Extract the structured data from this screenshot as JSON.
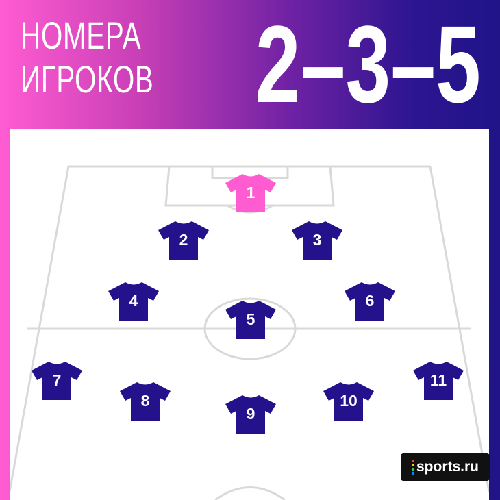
{
  "header": {
    "title_line1": "НОМЕРА",
    "title_line2": "ИГРОКОВ",
    "formation": "2–3–5"
  },
  "colors": {
    "gradient_start": "#ff5cd2",
    "gradient_end": "#1f1488",
    "goalkeeper_shirt": "#ff5cd2",
    "outfield_shirt": "#23128c",
    "pitch_lines": "#d9d9d9"
  },
  "players": [
    {
      "number": "1",
      "role": "goalkeeper"
    },
    {
      "number": "2",
      "role": "outfield"
    },
    {
      "number": "3",
      "role": "outfield"
    },
    {
      "number": "4",
      "role": "outfield"
    },
    {
      "number": "5",
      "role": "outfield"
    },
    {
      "number": "6",
      "role": "outfield"
    },
    {
      "number": "7",
      "role": "outfield"
    },
    {
      "number": "8",
      "role": "outfield"
    },
    {
      "number": "9",
      "role": "outfield"
    },
    {
      "number": "10",
      "role": "outfield"
    },
    {
      "number": "11",
      "role": "outfield"
    }
  ],
  "logo": {
    "text": "sports.ru",
    "icon": "sports-ru-logo-icon",
    "dot_colors": [
      "#ff3b30",
      "#ffcc00",
      "#34c759",
      "#0a84ff"
    ]
  }
}
